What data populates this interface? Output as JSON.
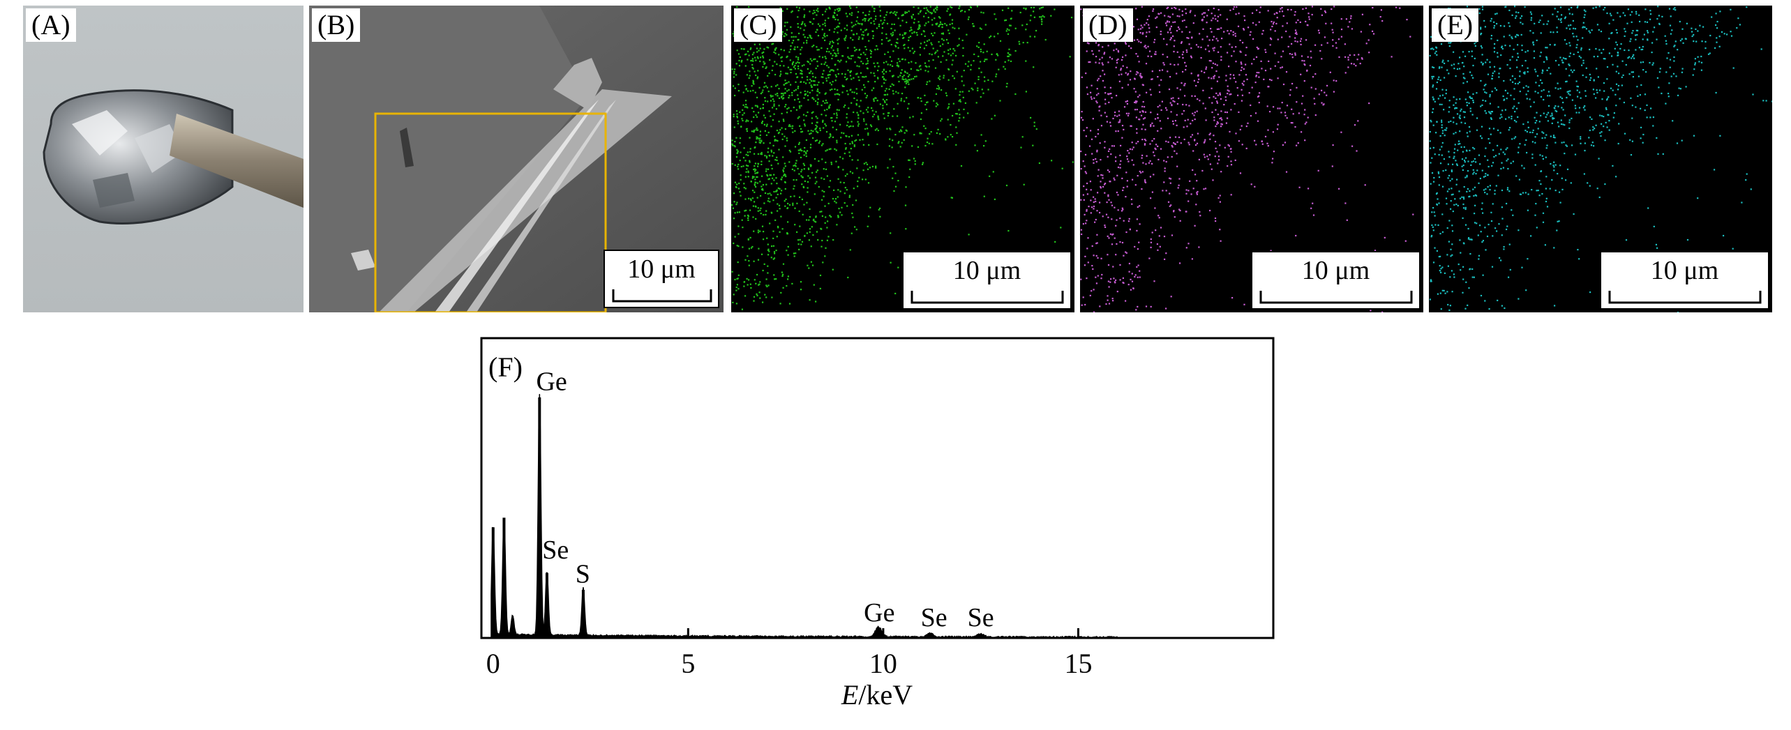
{
  "panels": {
    "a": {
      "label": "(A)"
    },
    "b": {
      "label": "(B)",
      "scale": "10 μm"
    },
    "c": {
      "label": "(C)",
      "scale": "10 μm",
      "dot_color": "#22c31c"
    },
    "d": {
      "label": "(D)",
      "scale": "10 μm",
      "dot_color": "#c65cd2"
    },
    "e": {
      "label": "(E)",
      "scale": "10 μm",
      "dot_color": "#1bbcbd"
    }
  },
  "chart_data": {
    "type": "line",
    "panel_label": "(F)",
    "xlabel_italic": "E",
    "xlabel_unit": "/keV",
    "xlim": [
      -0.3,
      20
    ],
    "ylim": [
      0,
      1
    ],
    "xticks": [
      0,
      5,
      10,
      15
    ],
    "peaks": [
      {
        "x": 0.0,
        "y": 0.46
      },
      {
        "x": 0.28,
        "y": 0.5
      },
      {
        "x": 0.5,
        "y": 0.08
      },
      {
        "x": 1.19,
        "y": 1.0
      },
      {
        "x": 1.38,
        "y": 0.27
      },
      {
        "x": 2.31,
        "y": 0.2
      },
      {
        "x": 9.88,
        "y": 0.04
      },
      {
        "x": 11.2,
        "y": 0.015
      },
      {
        "x": 12.5,
        "y": 0.012
      }
    ],
    "annotations": [
      {
        "text": "Ge",
        "x": 1.5,
        "y": 1.03
      },
      {
        "text": "Se",
        "x": 1.6,
        "y": 0.33
      },
      {
        "text": "S",
        "x": 2.3,
        "y": 0.23
      },
      {
        "text": "Ge",
        "x": 9.9,
        "y": 0.07
      },
      {
        "text": "Se",
        "x": 11.3,
        "y": 0.05
      },
      {
        "text": "Se",
        "x": 12.5,
        "y": 0.05
      }
    ]
  }
}
